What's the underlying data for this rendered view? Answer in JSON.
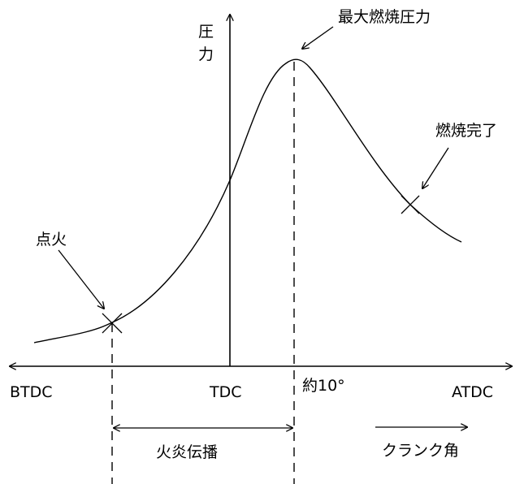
{
  "labels": {
    "pressure_axis": "圧力",
    "pressure_axis_top": "圧",
    "pressure_axis_bottom": "力",
    "max_pressure": "最大燃焼圧力",
    "combustion_end": "燃焼完了",
    "ignition": "点火",
    "btdc": "BTDC",
    "tdc": "TDC",
    "about_10": "約10°",
    "atdc": "ATDC",
    "flame_propagation": "火炎伝播",
    "crank_angle": "クランク角"
  },
  "colors": {
    "line": "#000000",
    "background": "#ffffff"
  }
}
